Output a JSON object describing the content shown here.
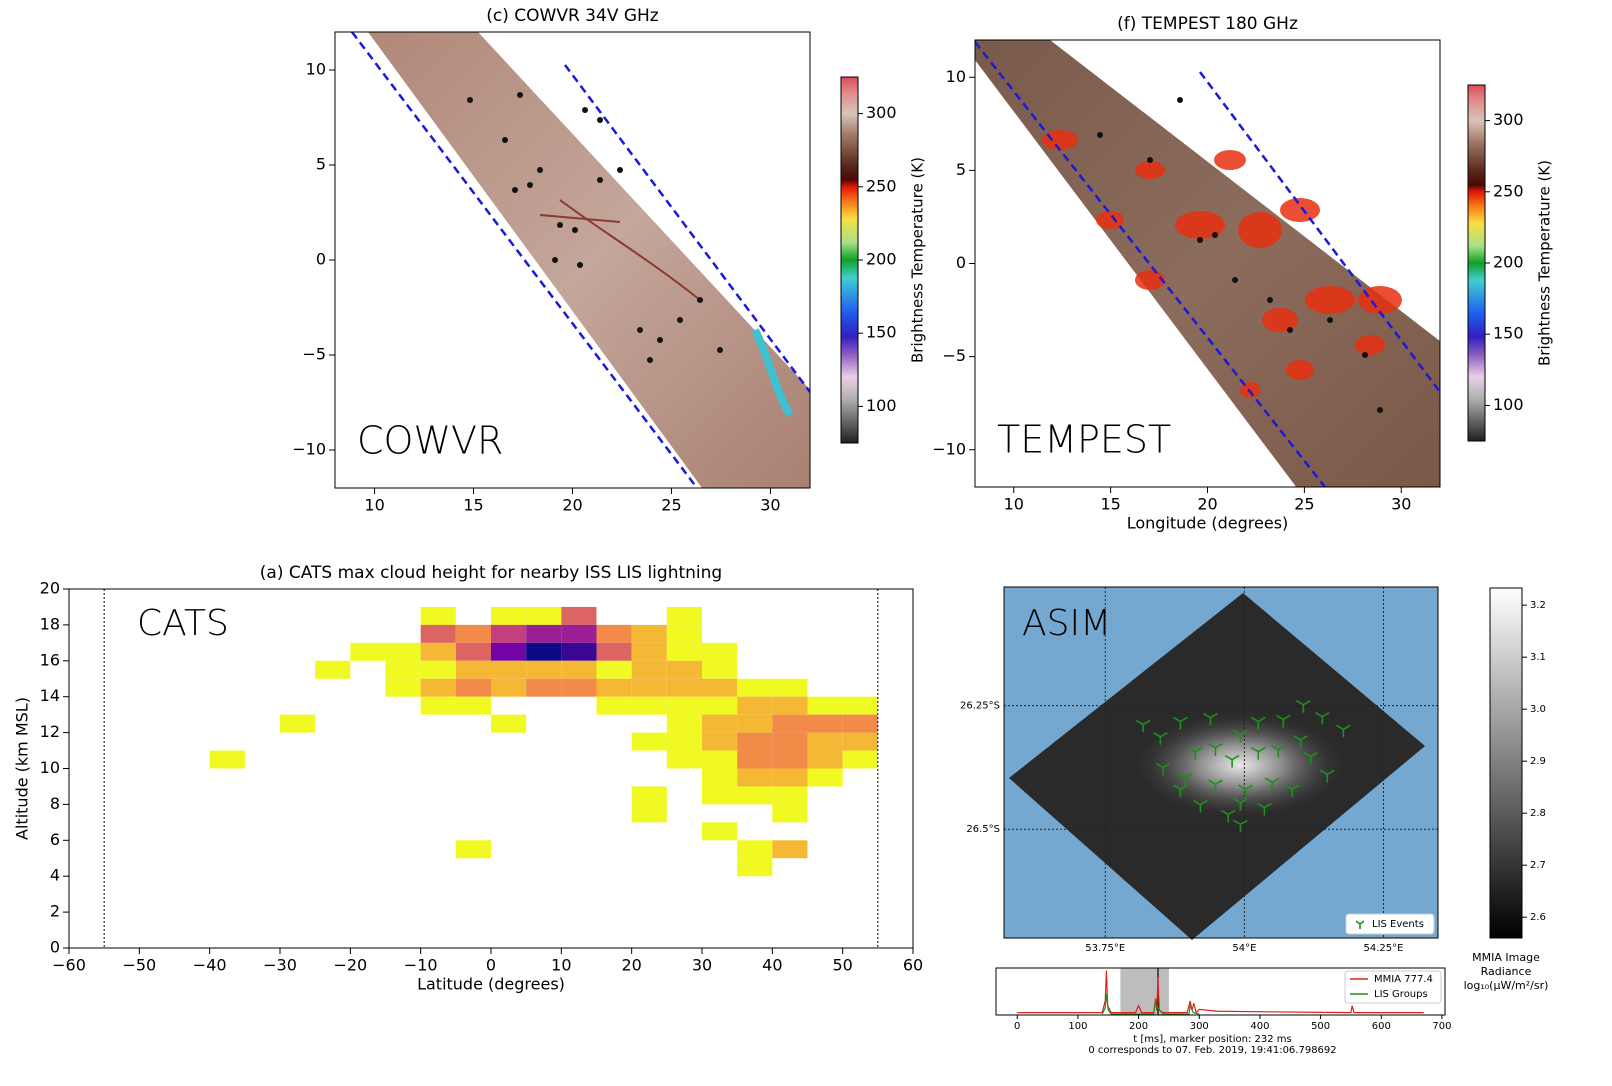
{
  "chart_data": [
    {
      "type": "image",
      "title": "(c) COWVR 34V GHz",
      "annotation": "COWVR",
      "xlim": [
        8,
        32
      ],
      "ylim": [
        -12,
        12
      ],
      "xticks": [
        10,
        15,
        20,
        25,
        30
      ],
      "yticks": [
        {
          "value": -10,
          "label": "−10"
        },
        {
          "value": -5,
          "label": "−5"
        },
        0,
        5,
        10
      ],
      "colorbar": {
        "label": "Brightness Temperature (K)",
        "lim": [
          75,
          325
        ],
        "ticks": [
          100,
          150,
          200,
          250,
          300
        ]
      }
    },
    {
      "type": "image",
      "title": "(f) TEMPEST 180 GHz",
      "annotation": "TEMPEST",
      "xlabel": "Longitude (degrees)",
      "xlim": [
        8,
        32
      ],
      "ylim": [
        -12,
        12
      ],
      "xticks": [
        10,
        15,
        20,
        25,
        30
      ],
      "yticks": [
        {
          "value": -10,
          "label": "−10"
        },
        {
          "value": -5,
          "label": "−5"
        },
        0,
        5,
        10
      ],
      "colorbar": {
        "label": "Brightness Temperature (K)",
        "lim": [
          75,
          325
        ],
        "ticks": [
          100,
          150,
          200,
          250,
          300
        ]
      }
    },
    {
      "type": "heatmap",
      "title": "(a) CATS max cloud height for nearby ISS LIS lightning",
      "annotation": "CATS",
      "xlabel": "Latitude (degrees)",
      "ylabel": "Altitude (km MSL)",
      "colormap": "plasma_r",
      "xlim": [
        -60,
        60
      ],
      "ylim": [
        0,
        20
      ],
      "xticks": [
        {
          "value": -60,
          "label": "−60"
        },
        {
          "value": -50,
          "label": "−50"
        },
        {
          "value": -40,
          "label": "−40"
        },
        {
          "value": -30,
          "label": "−30"
        },
        {
          "value": -20,
          "label": "−20"
        },
        {
          "value": -10,
          "label": "−10"
        },
        0,
        10,
        20,
        30,
        40,
        50,
        60
      ],
      "yticks": [
        0,
        2,
        4,
        6,
        8,
        10,
        12,
        14,
        16,
        18,
        20
      ],
      "vlines": [
        -55,
        55
      ],
      "x_bin_width": 5,
      "y_bin_height": 1,
      "x": [
        -10,
        0,
        5,
        10,
        25,
        -10,
        -5,
        0,
        5,
        10,
        15,
        20,
        25,
        -20,
        -15,
        -10,
        -5,
        0,
        5,
        10,
        15,
        20,
        25,
        30,
        -25,
        -15,
        -10,
        -5,
        0,
        5,
        10,
        15,
        20,
        25,
        30,
        -15,
        -10,
        -5,
        0,
        5,
        10,
        15,
        20,
        25,
        30,
        35,
        40,
        -10,
        -5,
        15,
        20,
        25,
        30,
        35,
        40,
        45,
        50,
        -30,
        0,
        25,
        30,
        35,
        40,
        45,
        50,
        20,
        25,
        30,
        35,
        40,
        45,
        50,
        -40,
        25,
        30,
        35,
        40,
        45,
        50,
        30,
        35,
        40,
        45,
        20,
        30,
        35,
        40,
        20,
        40,
        30,
        -5,
        35,
        40,
        35
      ],
      "y": [
        18,
        18,
        18,
        18,
        18,
        17,
        17,
        17,
        17,
        17,
        17,
        17,
        17,
        16,
        16,
        16,
        16,
        16,
        16,
        16,
        16,
        16,
        16,
        16,
        15,
        15,
        15,
        15,
        15,
        15,
        15,
        15,
        15,
        15,
        15,
        14,
        14,
        14,
        14,
        14,
        14,
        14,
        14,
        14,
        14,
        14,
        14,
        13,
        13,
        13,
        13,
        13,
        13,
        13,
        13,
        13,
        13,
        12,
        12,
        12,
        12,
        12,
        12,
        12,
        12,
        11,
        11,
        11,
        11,
        11,
        11,
        11,
        10,
        10,
        10,
        10,
        10,
        10,
        10,
        9,
        9,
        9,
        9,
        8,
        8,
        8,
        8,
        7,
        7,
        6,
        5,
        5,
        5,
        4
      ],
      "values": [
        1,
        1,
        1,
        4,
        1,
        4,
        3,
        5,
        6,
        6,
        3,
        2,
        1,
        1,
        1,
        2,
        4,
        7,
        9,
        8,
        4,
        2,
        1,
        1,
        1,
        1,
        1,
        2,
        2,
        2,
        2,
        1,
        2,
        2,
        1,
        1,
        2,
        3,
        2,
        3,
        3,
        2,
        2,
        2,
        2,
        1,
        1,
        1,
        1,
        1,
        1,
        1,
        1,
        2,
        2,
        1,
        1,
        1,
        1,
        1,
        2,
        2,
        3,
        3,
        3,
        1,
        1,
        2,
        3,
        3,
        2,
        2,
        1,
        1,
        1,
        3,
        3,
        2,
        1,
        1,
        2,
        2,
        1,
        1,
        1,
        1,
        1,
        1,
        1,
        1,
        1,
        1,
        2,
        1
      ]
    },
    {
      "type": "map",
      "annotation": "ASIM",
      "xlim": [
        53.568,
        54.348
      ],
      "ylim": [
        -26.72,
        -26.01
      ],
      "xticks": [
        {
          "value": 53.75,
          "label": "53.75°E"
        },
        {
          "value": 54,
          "label": "54°E"
        },
        {
          "value": 54.25,
          "label": "54.25°E"
        }
      ],
      "yticks": [
        {
          "value": -26.25,
          "label": "26.25°S"
        },
        {
          "value": -26.5,
          "label": "26.5°S"
        }
      ],
      "series": [
        {
          "name": "LIS Events",
          "color": "#1f8f1f",
          "x": [
            53.818,
            53.849,
            53.885,
            53.939,
            53.993,
            54.025,
            54.106,
            54.14,
            54.178,
            54.07,
            54.101,
            53.912,
            53.948,
            53.978,
            54.025,
            54.061,
            54.119,
            54.149,
            53.854,
            53.894,
            53.948,
            54.002,
            54.05,
            54.086,
            53.921,
            53.993,
            54.036,
            53.971,
            53.993,
            53.885
          ],
          "y": [
            -26.288,
            -26.313,
            -26.282,
            -26.274,
            -26.308,
            -26.282,
            -26.248,
            -26.272,
            -26.298,
            -26.278,
            -26.319,
            -26.343,
            -26.335,
            -26.359,
            -26.343,
            -26.339,
            -26.353,
            -26.389,
            -26.375,
            -26.395,
            -26.409,
            -26.419,
            -26.405,
            -26.419,
            -26.45,
            -26.446,
            -26.456,
            -26.47,
            -26.49,
            -26.419
          ]
        }
      ],
      "colorbar": {
        "label": [
          "MMIA Image",
          "Radiance",
          "log₁₀(μW/m²/sr)"
        ],
        "lim": [
          2.56,
          3.233
        ],
        "ticks": [
          {
            "value": 2.6,
            "label": "2.6"
          },
          {
            "value": 2.7,
            "label": "2.7"
          },
          {
            "value": 2.8,
            "label": "2.8"
          },
          {
            "value": 2.9,
            "label": "2.9"
          },
          {
            "value": 3,
            "label": "3.0"
          },
          {
            "value": 3.1,
            "label": "3.1"
          },
          {
            "value": 3.2,
            "label": "3.2"
          }
        ]
      }
    },
    {
      "type": "line",
      "xlabel": [
        "t [ms], marker position: 232 ms",
        "0 corresponds to 07. Feb. 2019, 19:41:06.798692"
      ],
      "xlim": [
        -35,
        705
      ],
      "ylim": [
        0,
        1
      ],
      "xticks": [
        0,
        100,
        200,
        300,
        400,
        500,
        600,
        700
      ],
      "highlight": [
        170,
        250
      ],
      "marker": 232,
      "series": [
        {
          "name": "MMIA 777.4",
          "color": "#e0201a",
          "x": [
            0,
            140,
            145,
            147,
            149,
            155,
            195,
            200,
            205,
            225,
            228,
            230,
            232,
            234,
            240,
            280,
            285,
            288,
            291,
            295,
            300,
            330,
            550,
            552,
            555,
            670
          ],
          "values": [
            0.05,
            0.05,
            0.3,
            0.95,
            0.2,
            0.05,
            0.05,
            0.2,
            0.05,
            0.05,
            0.35,
            0.1,
            0.8,
            0.1,
            0.05,
            0.05,
            0.3,
            0.1,
            0.25,
            0.05,
            0.12,
            0.08,
            0.05,
            0.2,
            0.05,
            0.05
          ]
        },
        {
          "name": "LIS Groups",
          "color": "#1f8f1f",
          "x": [
            140,
            145,
            147,
            150,
            155,
            225,
            228,
            232,
            240,
            283,
            285,
            290,
            300
          ],
          "values": [
            0.02,
            0.15,
            0.45,
            0.1,
            0.02,
            0.02,
            0.3,
            0.15,
            0.02,
            0.02,
            0.2,
            0.05,
            0.02
          ]
        }
      ]
    }
  ]
}
